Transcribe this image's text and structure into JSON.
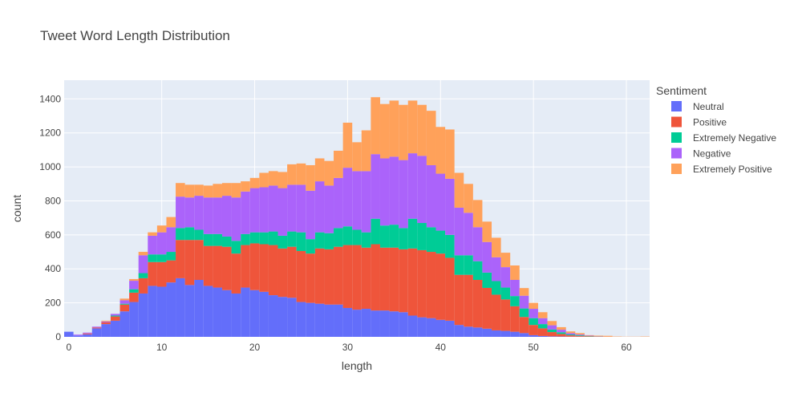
{
  "chart_data": {
    "type": "bar",
    "stacked": true,
    "title": "Tweet Word Length Distribution",
    "xlabel": "length",
    "ylabel": "count",
    "xlim": [
      -0.5,
      62.5
    ],
    "ylim": [
      0,
      1510
    ],
    "grid": true,
    "legend": {
      "title": "Sentiment",
      "placement": "right"
    },
    "x_ticks": [
      0,
      10,
      20,
      30,
      40,
      50,
      60
    ],
    "y_ticks": [
      0,
      200,
      400,
      600,
      800,
      1000,
      1200,
      1400
    ],
    "x": [
      0,
      1,
      2,
      3,
      4,
      5,
      6,
      7,
      8,
      9,
      10,
      11,
      12,
      13,
      14,
      15,
      16,
      17,
      18,
      19,
      20,
      21,
      22,
      23,
      24,
      25,
      26,
      27,
      28,
      29,
      30,
      31,
      32,
      33,
      34,
      35,
      36,
      37,
      38,
      39,
      40,
      41,
      42,
      43,
      44,
      45,
      46,
      47,
      48,
      49,
      50,
      51,
      52,
      53,
      54,
      55,
      56,
      57,
      58,
      59,
      60,
      61,
      62
    ],
    "series": [
      {
        "name": "Neutral",
        "color": "#636efa",
        "values": [
          30,
          8,
          15,
          50,
          75,
          95,
          150,
          205,
          255,
          300,
          295,
          320,
          345,
          305,
          335,
          300,
          290,
          275,
          255,
          290,
          275,
          265,
          245,
          235,
          230,
          205,
          200,
          195,
          190,
          190,
          170,
          160,
          165,
          155,
          155,
          150,
          145,
          125,
          115,
          110,
          100,
          95,
          70,
          60,
          55,
          48,
          38,
          35,
          30,
          22,
          10,
          5,
          3,
          2,
          1,
          1,
          0,
          0,
          0,
          0,
          0,
          0,
          0
        ]
      },
      {
        "name": "Positive",
        "color": "#ef553b",
        "values": [
          0,
          0,
          5,
          5,
          10,
          25,
          40,
          55,
          90,
          140,
          145,
          130,
          225,
          265,
          235,
          235,
          245,
          255,
          235,
          250,
          275,
          280,
          295,
          285,
          300,
          300,
          290,
          325,
          325,
          340,
          370,
          380,
          360,
          390,
          370,
          375,
          370,
          395,
          395,
          390,
          390,
          370,
          295,
          305,
          280,
          240,
          210,
          185,
          150,
          95,
          60,
          45,
          25,
          15,
          8,
          5,
          3,
          2,
          1,
          0,
          0,
          0,
          0
        ]
      },
      {
        "name": "Extremely Negative",
        "color": "#00cc96",
        "values": [
          0,
          0,
          0,
          0,
          0,
          5,
          5,
          20,
          30,
          45,
          45,
          50,
          70,
          75,
          60,
          70,
          70,
          60,
          75,
          65,
          65,
          70,
          80,
          75,
          90,
          110,
          85,
          95,
          95,
          110,
          110,
          90,
          90,
          150,
          130,
          135,
          125,
          175,
          160,
          145,
          135,
          135,
          115,
          115,
          110,
          90,
          80,
          70,
          60,
          50,
          40,
          25,
          15,
          10,
          5,
          4,
          2,
          1,
          0,
          0,
          0,
          0,
          0
        ]
      },
      {
        "name": "Negative",
        "color": "#ab63fa",
        "values": [
          0,
          5,
          5,
          5,
          5,
          10,
          20,
          50,
          105,
          110,
          130,
          145,
          185,
          175,
          200,
          215,
          215,
          240,
          255,
          250,
          260,
          265,
          270,
          280,
          275,
          280,
          285,
          300,
          280,
          295,
          345,
          345,
          360,
          380,
          395,
          400,
          400,
          385,
          395,
          365,
          335,
          330,
          280,
          250,
          200,
          180,
          140,
          120,
          95,
          75,
          55,
          35,
          25,
          15,
          8,
          4,
          2,
          1,
          0,
          0,
          0,
          0,
          0
        ]
      },
      {
        "name": "Extremely Positive",
        "color": "#ffa15a",
        "values": [
          0,
          0,
          0,
          0,
          5,
          0,
          10,
          10,
          20,
          20,
          40,
          60,
          80,
          75,
          65,
          70,
          80,
          75,
          85,
          60,
          60,
          85,
          85,
          95,
          120,
          125,
          150,
          135,
          145,
          160,
          265,
          170,
          240,
          335,
          320,
          330,
          325,
          310,
          300,
          320,
          275,
          290,
          205,
          170,
          160,
          120,
          115,
          85,
          85,
          45,
          35,
          35,
          25,
          15,
          10,
          8,
          3,
          3,
          5,
          2,
          1,
          1,
          2
        ]
      }
    ]
  }
}
